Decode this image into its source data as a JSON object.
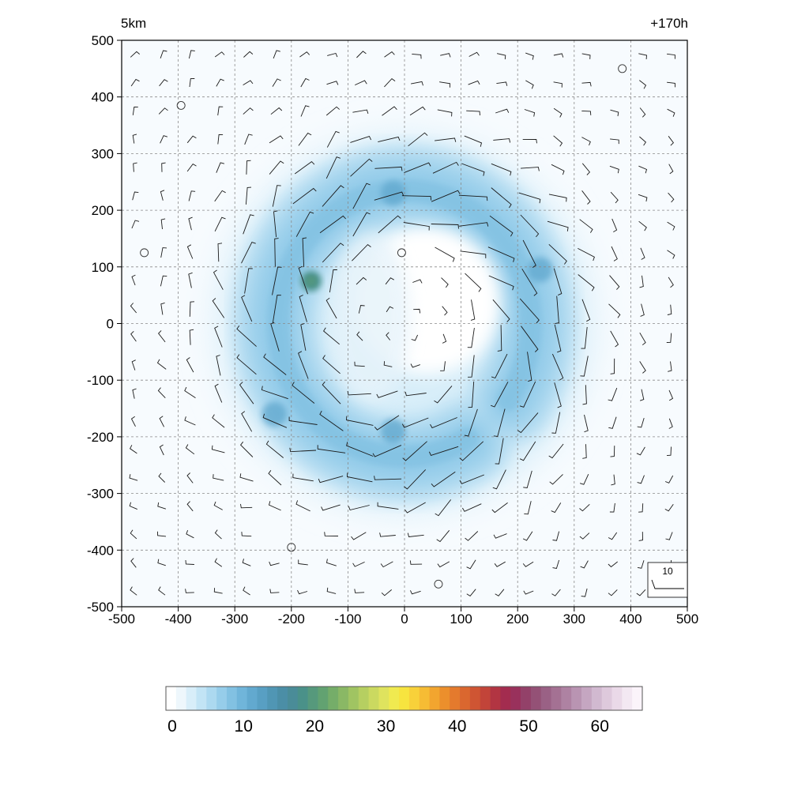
{
  "chart_data": {
    "type": "heatmap",
    "corner_labels": {
      "left": "5km",
      "right": "+170h"
    },
    "x_range": [
      -500,
      500
    ],
    "y_range": [
      -500,
      500
    ],
    "x_ticks": [
      -500,
      -400,
      -300,
      -200,
      -100,
      0,
      100,
      200,
      300,
      400,
      500
    ],
    "y_ticks": [
      -500,
      -400,
      -300,
      -200,
      -100,
      0,
      100,
      200,
      300,
      400,
      500
    ],
    "grid": "dashed, every 100",
    "field": {
      "description_ring": "annular maximum centred near (0,0)",
      "ring_radius": 240,
      "center_calm_radius": 130,
      "gap_direction": "east-southeast opening toward the inner core",
      "max_value_approx": 20,
      "max_location": [
        -165,
        75
      ],
      "secondary_maxima": [
        [
          240,
          95
        ],
        [
          -230,
          -160
        ],
        [
          -20,
          230
        ],
        [
          -20,
          -190
        ]
      ]
    },
    "wind_vectors": {
      "spacing": 50,
      "rotation": "counter-clockwise",
      "reference_label": "10",
      "reference_box": "bottom-right",
      "calm_circle_locations": [
        [
          -395,
          385
        ],
        [
          385,
          450
        ],
        [
          -460,
          125
        ],
        [
          -5,
          125
        ],
        [
          -200,
          -395
        ],
        [
          60,
          -460
        ]
      ]
    },
    "colorbar": {
      "min": 0,
      "max": 66,
      "step": 2,
      "tick_labels": [
        "0",
        "10",
        "20",
        "30",
        "40",
        "50",
        "60"
      ],
      "tick_values": [
        0,
        10,
        20,
        30,
        40,
        50,
        60
      ],
      "colors": [
        "#ffffff",
        "#eef7fc",
        "#d8eef9",
        "#c2e4f5",
        "#acd9f0",
        "#96cdea",
        "#82c1e2",
        "#70b5da",
        "#62a9cf",
        "#589fc3",
        "#5096b4",
        "#4b8ea6",
        "#4a8c98",
        "#4a9189",
        "#56997c",
        "#62a271",
        "#75ad69",
        "#8ab865",
        "#a0c462",
        "#b6cf61",
        "#cbd960",
        "#dfe35e",
        "#f0ea50",
        "#f7e43f",
        "#f8d13a",
        "#f6bc34",
        "#f2a52f",
        "#ec8f2c",
        "#e47a2d",
        "#da672f",
        "#cf5533",
        "#c24439",
        "#b23542",
        "#a32c4f",
        "#99315c",
        "#934169",
        "#945176",
        "#9a6185",
        "#a47193",
        "#ae82a2",
        "#b994b2",
        "#c5a6c1",
        "#d1b9d0",
        "#dec9dc",
        "#ead9e8",
        "#f3e8f2",
        "#fbf4fa"
      ]
    }
  }
}
